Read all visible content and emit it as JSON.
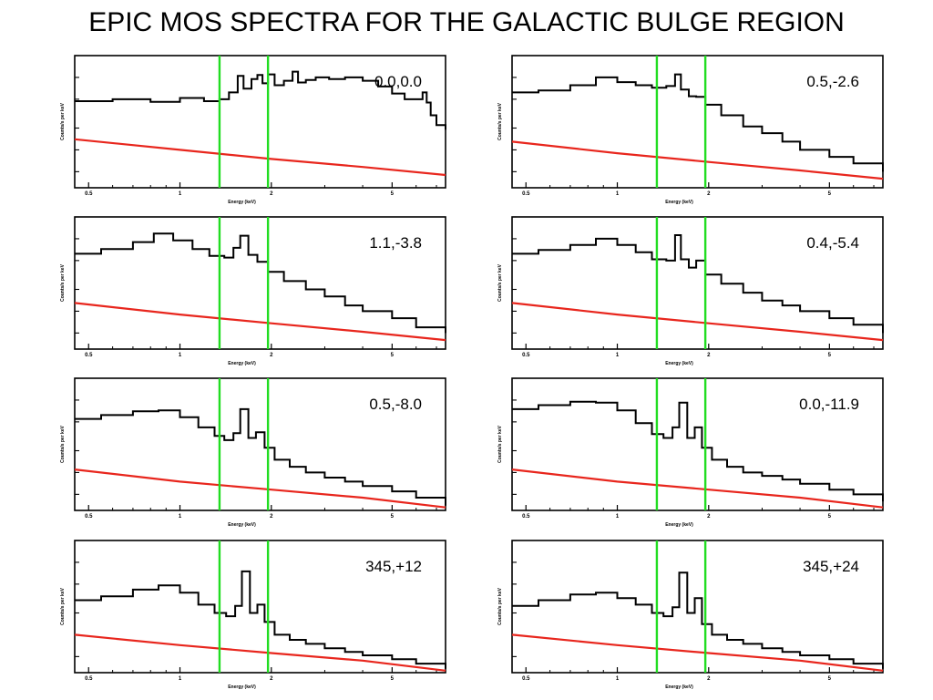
{
  "title": "EPIC MOS SPECTRA FOR THE GALACTIC BULGE REGION",
  "colors": {
    "spectrum": "#000000",
    "background": "#e8261d",
    "marker": "#22dd22"
  },
  "chart_data": [
    {
      "type": "line",
      "label": "0.0,0.0",
      "xlabel": "Energy (keV)",
      "ylabel": "Counts/s per keV",
      "xlog": true,
      "ylog": true,
      "xlim": [
        0.45,
        7.5
      ],
      "xticks": [
        {
          "v": 0.5,
          "t": "0.5"
        },
        {
          "v": 1,
          "t": "1"
        },
        {
          "v": 2,
          "t": "2"
        },
        {
          "v": 5,
          "t": "5"
        }
      ],
      "marker_energies": [
        1.35,
        1.95
      ],
      "series": [
        {
          "name": "spectrum",
          "x": [
            0.45,
            0.6,
            0.8,
            1.0,
            1.2,
            1.35,
            1.45,
            1.55,
            1.62,
            1.72,
            1.8,
            1.87,
            1.95,
            2.05,
            2.2,
            2.35,
            2.45,
            2.6,
            2.8,
            3.1,
            3.5,
            4.0,
            4.5,
            5.0,
            5.5,
            6.0,
            6.3,
            6.5,
            6.7,
            7.0,
            7.5
          ],
          "y": [
            0.47,
            0.5,
            0.46,
            0.52,
            0.47,
            0.5,
            0.62,
            1.05,
            0.7,
            0.95,
            1.08,
            0.83,
            1.1,
            0.78,
            0.9,
            1.2,
            0.85,
            0.92,
            1.0,
            0.95,
            1.0,
            0.9,
            0.75,
            0.6,
            0.5,
            0.5,
            0.62,
            0.45,
            0.3,
            0.22,
            0.19
          ]
        },
        {
          "name": "background",
          "x": [
            0.45,
            1.0,
            2.0,
            4.0,
            7.5
          ],
          "y": [
            0.14,
            0.1,
            0.075,
            0.058,
            0.045
          ]
        }
      ]
    },
    {
      "type": "line",
      "label": "0.5,-2.6",
      "xlabel": "Energy (keV)",
      "ylabel": "Counts/s per keV",
      "xlog": true,
      "ylog": true,
      "xlim": [
        0.45,
        7.5
      ],
      "xticks": [
        {
          "v": 0.5,
          "t": "0.5"
        },
        {
          "v": 1,
          "t": "1"
        },
        {
          "v": 2,
          "t": "2"
        },
        {
          "v": 5,
          "t": "5"
        }
      ],
      "marker_energies": [
        1.35,
        1.95
      ],
      "series": [
        {
          "name": "spectrum",
          "x": [
            0.45,
            0.55,
            0.7,
            0.85,
            1.0,
            1.15,
            1.3,
            1.45,
            1.55,
            1.62,
            1.72,
            1.82,
            1.95,
            2.2,
            2.6,
            3.0,
            3.5,
            4.0,
            5.0,
            6.0,
            7.5
          ],
          "y": [
            0.62,
            0.66,
            0.78,
            1.0,
            0.86,
            0.78,
            0.72,
            0.76,
            1.1,
            0.68,
            0.55,
            0.54,
            0.42,
            0.3,
            0.21,
            0.17,
            0.13,
            0.1,
            0.08,
            0.065,
            0.05
          ]
        },
        {
          "name": "background",
          "x": [
            0.45,
            1.0,
            2.0,
            4.0,
            7.5
          ],
          "y": [
            0.13,
            0.09,
            0.068,
            0.052,
            0.04
          ]
        }
      ]
    },
    {
      "type": "line",
      "label": "1.1,-3.8",
      "xlabel": "Energy (keV)",
      "ylabel": "Counts/s per keV",
      "xlog": true,
      "ylog": true,
      "xlim": [
        0.45,
        7.5
      ],
      "xticks": [
        {
          "v": 0.5,
          "t": "0.5"
        },
        {
          "v": 1,
          "t": "1"
        },
        {
          "v": 2,
          "t": "2"
        },
        {
          "v": 5,
          "t": "5"
        }
      ],
      "marker_energies": [
        1.35,
        1.95
      ],
      "series": [
        {
          "name": "spectrum",
          "x": [
            0.45,
            0.55,
            0.7,
            0.82,
            0.95,
            1.1,
            1.25,
            1.4,
            1.5,
            1.58,
            1.68,
            1.8,
            1.95,
            2.2,
            2.6,
            3.0,
            3.5,
            4.0,
            5.0,
            6.0,
            7.5
          ],
          "y": [
            0.62,
            0.72,
            0.9,
            1.18,
            0.95,
            0.72,
            0.58,
            0.55,
            0.75,
            1.1,
            0.6,
            0.48,
            0.35,
            0.26,
            0.2,
            0.16,
            0.12,
            0.1,
            0.08,
            0.06,
            0.05
          ]
        },
        {
          "name": "background",
          "x": [
            0.45,
            1.0,
            2.0,
            4.0,
            7.5
          ],
          "y": [
            0.13,
            0.09,
            0.068,
            0.052,
            0.04
          ]
        }
      ]
    },
    {
      "type": "line",
      "label": "0.4,-5.4",
      "xlabel": "Energy (keV)",
      "ylabel": "Counts/s per keV",
      "xlog": true,
      "ylog": true,
      "xlim": [
        0.45,
        7.5
      ],
      "xticks": [
        {
          "v": 0.5,
          "t": "0.5"
        },
        {
          "v": 1,
          "t": "1"
        },
        {
          "v": 2,
          "t": "2"
        },
        {
          "v": 5,
          "t": "5"
        }
      ],
      "marker_energies": [
        1.35,
        1.95
      ],
      "series": [
        {
          "name": "spectrum",
          "x": [
            0.45,
            0.55,
            0.7,
            0.85,
            1.0,
            1.15,
            1.3,
            1.45,
            1.55,
            1.62,
            1.72,
            1.82,
            1.95,
            2.2,
            2.6,
            3.0,
            3.5,
            4.0,
            5.0,
            6.0,
            7.5
          ],
          "y": [
            0.62,
            0.7,
            0.82,
            1.0,
            0.82,
            0.65,
            0.52,
            0.5,
            1.12,
            0.52,
            0.4,
            0.5,
            0.32,
            0.24,
            0.18,
            0.14,
            0.12,
            0.1,
            0.08,
            0.065,
            0.05
          ]
        },
        {
          "name": "background",
          "x": [
            0.45,
            1.0,
            2.0,
            4.0,
            7.5
          ],
          "y": [
            0.13,
            0.09,
            0.068,
            0.052,
            0.04
          ]
        }
      ]
    },
    {
      "type": "line",
      "label": "0.5,-8.0",
      "xlabel": "Energy (keV)",
      "ylabel": "Counts/s per keV",
      "xlog": true,
      "ylog": true,
      "xlim": [
        0.45,
        7.5
      ],
      "xticks": [
        {
          "v": 0.5,
          "t": "0.5"
        },
        {
          "v": 1,
          "t": "1"
        },
        {
          "v": 2,
          "t": "2"
        },
        {
          "v": 5,
          "t": "5"
        }
      ],
      "marker_energies": [
        1.35,
        1.95
      ],
      "series": [
        {
          "name": "spectrum",
          "x": [
            0.45,
            0.55,
            0.7,
            0.85,
            1.0,
            1.15,
            1.3,
            1.4,
            1.5,
            1.58,
            1.68,
            1.78,
            1.9,
            2.05,
            2.3,
            2.6,
            3.0,
            3.5,
            4.0,
            5.0,
            6.0,
            7.5
          ],
          "y": [
            0.55,
            0.62,
            0.7,
            0.72,
            0.58,
            0.42,
            0.32,
            0.28,
            0.35,
            0.75,
            0.3,
            0.36,
            0.22,
            0.15,
            0.12,
            0.1,
            0.085,
            0.075,
            0.065,
            0.055,
            0.045,
            0.035
          ]
        },
        {
          "name": "background",
          "x": [
            0.45,
            1.0,
            2.0,
            4.0,
            7.5
          ],
          "y": [
            0.11,
            0.075,
            0.058,
            0.045,
            0.033
          ]
        }
      ]
    },
    {
      "type": "line",
      "label": "0.0,-11.9",
      "xlabel": "Energy (keV)",
      "ylabel": "Counts/s per keV",
      "xlog": true,
      "ylog": true,
      "xlim": [
        0.45,
        7.5
      ],
      "xticks": [
        {
          "v": 0.5,
          "t": "0.5"
        },
        {
          "v": 1,
          "t": "1"
        },
        {
          "v": 2,
          "t": "2"
        },
        {
          "v": 5,
          "t": "5"
        }
      ],
      "marker_energies": [
        1.35,
        1.95
      ],
      "series": [
        {
          "name": "spectrum",
          "x": [
            0.45,
            0.55,
            0.7,
            0.85,
            1.0,
            1.15,
            1.3,
            1.42,
            1.52,
            1.6,
            1.7,
            1.8,
            1.9,
            2.05,
            2.3,
            2.6,
            3.0,
            3.5,
            4.0,
            5.0,
            6.0,
            7.5
          ],
          "y": [
            0.75,
            0.85,
            0.95,
            0.92,
            0.72,
            0.48,
            0.34,
            0.3,
            0.42,
            0.92,
            0.3,
            0.42,
            0.22,
            0.15,
            0.12,
            0.1,
            0.09,
            0.08,
            0.07,
            0.058,
            0.05,
            0.04
          ]
        },
        {
          "name": "background",
          "x": [
            0.45,
            1.0,
            2.0,
            4.0,
            7.5
          ],
          "y": [
            0.11,
            0.075,
            0.058,
            0.045,
            0.033
          ]
        }
      ]
    },
    {
      "type": "line",
      "label": "345,+12",
      "xlabel": "Energy (keV)",
      "ylabel": "Counts/s per keV",
      "xlog": true,
      "ylog": true,
      "xlim": [
        0.45,
        7.5
      ],
      "xticks": [
        {
          "v": 0.5,
          "t": "0.5"
        },
        {
          "v": 1,
          "t": "1"
        },
        {
          "v": 2,
          "t": "2"
        },
        {
          "v": 5,
          "t": "5"
        }
      ],
      "marker_energies": [
        1.35,
        1.95
      ],
      "series": [
        {
          "name": "spectrum",
          "x": [
            0.45,
            0.55,
            0.7,
            0.85,
            1.0,
            1.15,
            1.3,
            1.42,
            1.52,
            1.6,
            1.7,
            1.8,
            1.9,
            2.05,
            2.3,
            2.6,
            3.0,
            3.5,
            4.0,
            5.0,
            6.0,
            7.5
          ],
          "y": [
            0.3,
            0.34,
            0.42,
            0.48,
            0.38,
            0.26,
            0.2,
            0.18,
            0.25,
            0.75,
            0.2,
            0.26,
            0.15,
            0.1,
            0.085,
            0.075,
            0.065,
            0.058,
            0.052,
            0.046,
            0.04,
            0.034
          ]
        },
        {
          "name": "background",
          "x": [
            0.45,
            1.0,
            2.0,
            4.0,
            7.5
          ],
          "y": [
            0.1,
            0.072,
            0.056,
            0.044,
            0.032
          ]
        }
      ]
    },
    {
      "type": "line",
      "label": "345,+24",
      "xlabel": "Energy (keV)",
      "ylabel": "Counts/s per keV",
      "xlog": true,
      "ylog": true,
      "xlim": [
        0.45,
        7.5
      ],
      "xticks": [
        {
          "v": 0.5,
          "t": "0.5"
        },
        {
          "v": 1,
          "t": "1"
        },
        {
          "v": 2,
          "t": "2"
        },
        {
          "v": 5,
          "t": "5"
        }
      ],
      "marker_energies": [
        1.35,
        1.95
      ],
      "series": [
        {
          "name": "spectrum",
          "x": [
            0.45,
            0.55,
            0.7,
            0.85,
            1.0,
            1.15,
            1.3,
            1.42,
            1.52,
            1.6,
            1.7,
            1.8,
            1.9,
            2.05,
            2.3,
            2.6,
            3.0,
            3.5,
            4.0,
            5.0,
            6.0,
            7.5
          ],
          "y": [
            0.25,
            0.3,
            0.36,
            0.38,
            0.32,
            0.26,
            0.2,
            0.18,
            0.24,
            0.72,
            0.2,
            0.32,
            0.14,
            0.1,
            0.085,
            0.075,
            0.065,
            0.058,
            0.052,
            0.046,
            0.04,
            0.034
          ]
        },
        {
          "name": "background",
          "x": [
            0.45,
            1.0,
            2.0,
            4.0,
            7.5
          ],
          "y": [
            0.1,
            0.072,
            0.056,
            0.044,
            0.032
          ]
        }
      ]
    }
  ]
}
